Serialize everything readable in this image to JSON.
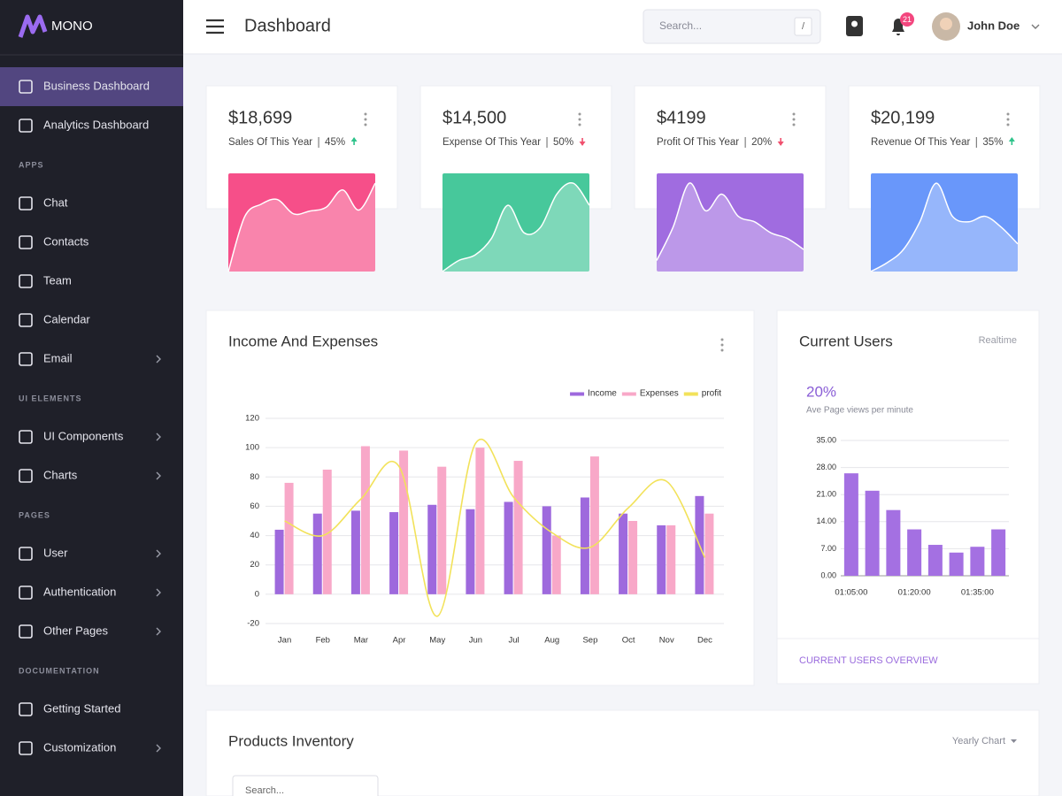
{
  "sidebar": {
    "brand": "MONO",
    "groups": [
      {
        "items": [
          {
            "label": "Business Dashboard",
            "active": true
          },
          {
            "label": "Analytics Dashboard"
          }
        ]
      },
      {
        "title": "APPS",
        "items": [
          {
            "label": "Chat"
          },
          {
            "label": "Contacts"
          },
          {
            "label": "Team"
          },
          {
            "label": "Calendar"
          },
          {
            "label": "Email",
            "submenu": true
          }
        ]
      },
      {
        "title": "UI ELEMENTS",
        "items": [
          {
            "label": "UI Components",
            "submenu": true
          },
          {
            "label": "Charts",
            "submenu": true
          }
        ]
      },
      {
        "title": "PAGES",
        "items": [
          {
            "label": "User",
            "submenu": true
          },
          {
            "label": "Authentication",
            "submenu": true
          },
          {
            "label": "Other Pages",
            "submenu": true
          }
        ]
      },
      {
        "title": "DOCUMENTATION",
        "items": [
          {
            "label": "Getting Started"
          },
          {
            "label": "Customization",
            "submenu": true
          }
        ]
      }
    ]
  },
  "header": {
    "title": "Dashboard",
    "search_placeholder": "Search...",
    "search_shortcut": "/",
    "notifications": 21,
    "user": "John Doe"
  },
  "cards": [
    {
      "value": "$18,699",
      "label": "Sales Of This Year",
      "percent": "45%",
      "trend": "up",
      "color": "#f64f89",
      "sparkline": [
        0,
        57,
        70,
        75,
        60,
        63,
        67,
        85,
        64,
        92
      ]
    },
    {
      "value": "$14,500",
      "label": "Expense Of This Year",
      "percent": "50%",
      "trend": "down",
      "color": "#47c89b",
      "sparkline": [
        0,
        10,
        15,
        30,
        60,
        35,
        40,
        70,
        80,
        60
      ]
    },
    {
      "value": "$4199",
      "label": "Profit Of This Year",
      "percent": "20%",
      "trend": "down",
      "color": "#a06ce0",
      "sparkline": [
        10,
        40,
        80,
        55,
        70,
        50,
        45,
        35,
        30,
        20
      ]
    },
    {
      "value": "$20,199",
      "label": "Revenue Of This Year",
      "percent": "35%",
      "trend": "up",
      "color": "#6997fa",
      "sparkline": [
        0,
        8,
        20,
        45,
        80,
        50,
        45,
        50,
        40,
        25
      ]
    }
  ],
  "chart_data": [
    {
      "type": "bar",
      "title": "Income And Expenses",
      "categories": [
        "Jan",
        "Feb",
        "Mar",
        "Apr",
        "May",
        "Jun",
        "Jul",
        "Aug",
        "Sep",
        "Oct",
        "Nov",
        "Dec"
      ],
      "series": [
        {
          "name": "Income",
          "color": "#9e69dd",
          "values": [
            44,
            55,
            57,
            56,
            61,
            58,
            63,
            60,
            66,
            55,
            47,
            67
          ]
        },
        {
          "name": "Expenses",
          "color": "#f8a8c8",
          "values": [
            76,
            85,
            101,
            98,
            87,
            100,
            91,
            40,
            94,
            50,
            47,
            55
          ]
        },
        {
          "name": "profit",
          "type": "line",
          "color": "#f2e25a",
          "values": [
            50,
            40,
            65,
            87,
            -15,
            103,
            66,
            42,
            32,
            59,
            77,
            25
          ]
        }
      ],
      "ylim": [
        -20,
        120
      ],
      "yticks": [
        -20,
        0,
        20,
        40,
        60,
        80,
        100,
        120
      ],
      "grid": true,
      "legend": "top-right"
    },
    {
      "type": "bar",
      "title": "Current Users",
      "subtitle": "Realtime",
      "highlight": "20%",
      "highlight_label": "Ave Page views per minute",
      "categories": [
        "01:05:00",
        null,
        null,
        "01:20:00",
        null,
        null,
        "01:35:00",
        null
      ],
      "values": [
        26.5,
        22,
        17,
        12,
        8,
        6,
        7.5,
        12
      ],
      "color": "#a470e2",
      "ylim": [
        0,
        35
      ],
      "yticks": [
        {
          "value": 0,
          "label": "0.00"
        },
        {
          "value": 7,
          "label": "7.00"
        },
        {
          "value": 14,
          "label": "14.00"
        },
        {
          "value": 21,
          "label": "21.00"
        },
        {
          "value": 28,
          "label": "28.00"
        },
        {
          "value": 35,
          "label": "35.00"
        }
      ],
      "grid": true,
      "link": "CURRENT USERS OVERVIEW"
    }
  ],
  "products": {
    "title": "Products Inventory",
    "filter": "Yearly Chart",
    "search_placeholder": "Search..."
  }
}
